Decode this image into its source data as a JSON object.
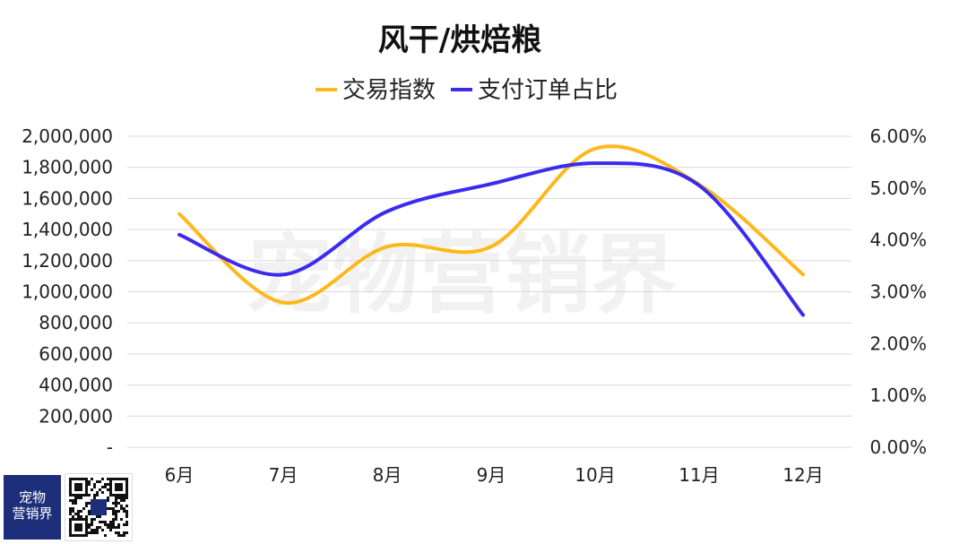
{
  "title": "风干/烘焙粮",
  "watermark": "宠物营销界",
  "brand": {
    "line1": "宠物",
    "line2": "营销界"
  },
  "colors": {
    "series1": "#FFB81C",
    "series2": "#3A2BEE",
    "grid": "#D9D9D9"
  },
  "chart_data": {
    "type": "line",
    "title": "风干/烘焙粮",
    "categories": [
      "6月",
      "7月",
      "8月",
      "9月",
      "10月",
      "11月",
      "12月"
    ],
    "series": [
      {
        "name": "交易指数",
        "axis": "left",
        "values": [
          1500000,
          930000,
          1290000,
          1290000,
          1920000,
          1690000,
          1110000
        ]
      },
      {
        "name": "支付订单占比",
        "axis": "right",
        "values": [
          0.041,
          0.0333,
          0.0455,
          0.0508,
          0.0548,
          0.0505,
          0.0255
        ]
      }
    ],
    "y_left": {
      "min": 0,
      "max": 2000000,
      "ticks": [
        "-",
        "200,000",
        "400,000",
        "600,000",
        "800,000",
        "1,000,000",
        "1,200,000",
        "1,400,000",
        "1,600,000",
        "1,800,000",
        "2,000,000"
      ]
    },
    "y_right": {
      "min": 0,
      "max": 0.06,
      "ticks": [
        "0.00%",
        "1.00%",
        "2.00%",
        "3.00%",
        "4.00%",
        "5.00%",
        "6.00%"
      ]
    },
    "grid": true,
    "legend": "top",
    "smooth": true
  }
}
